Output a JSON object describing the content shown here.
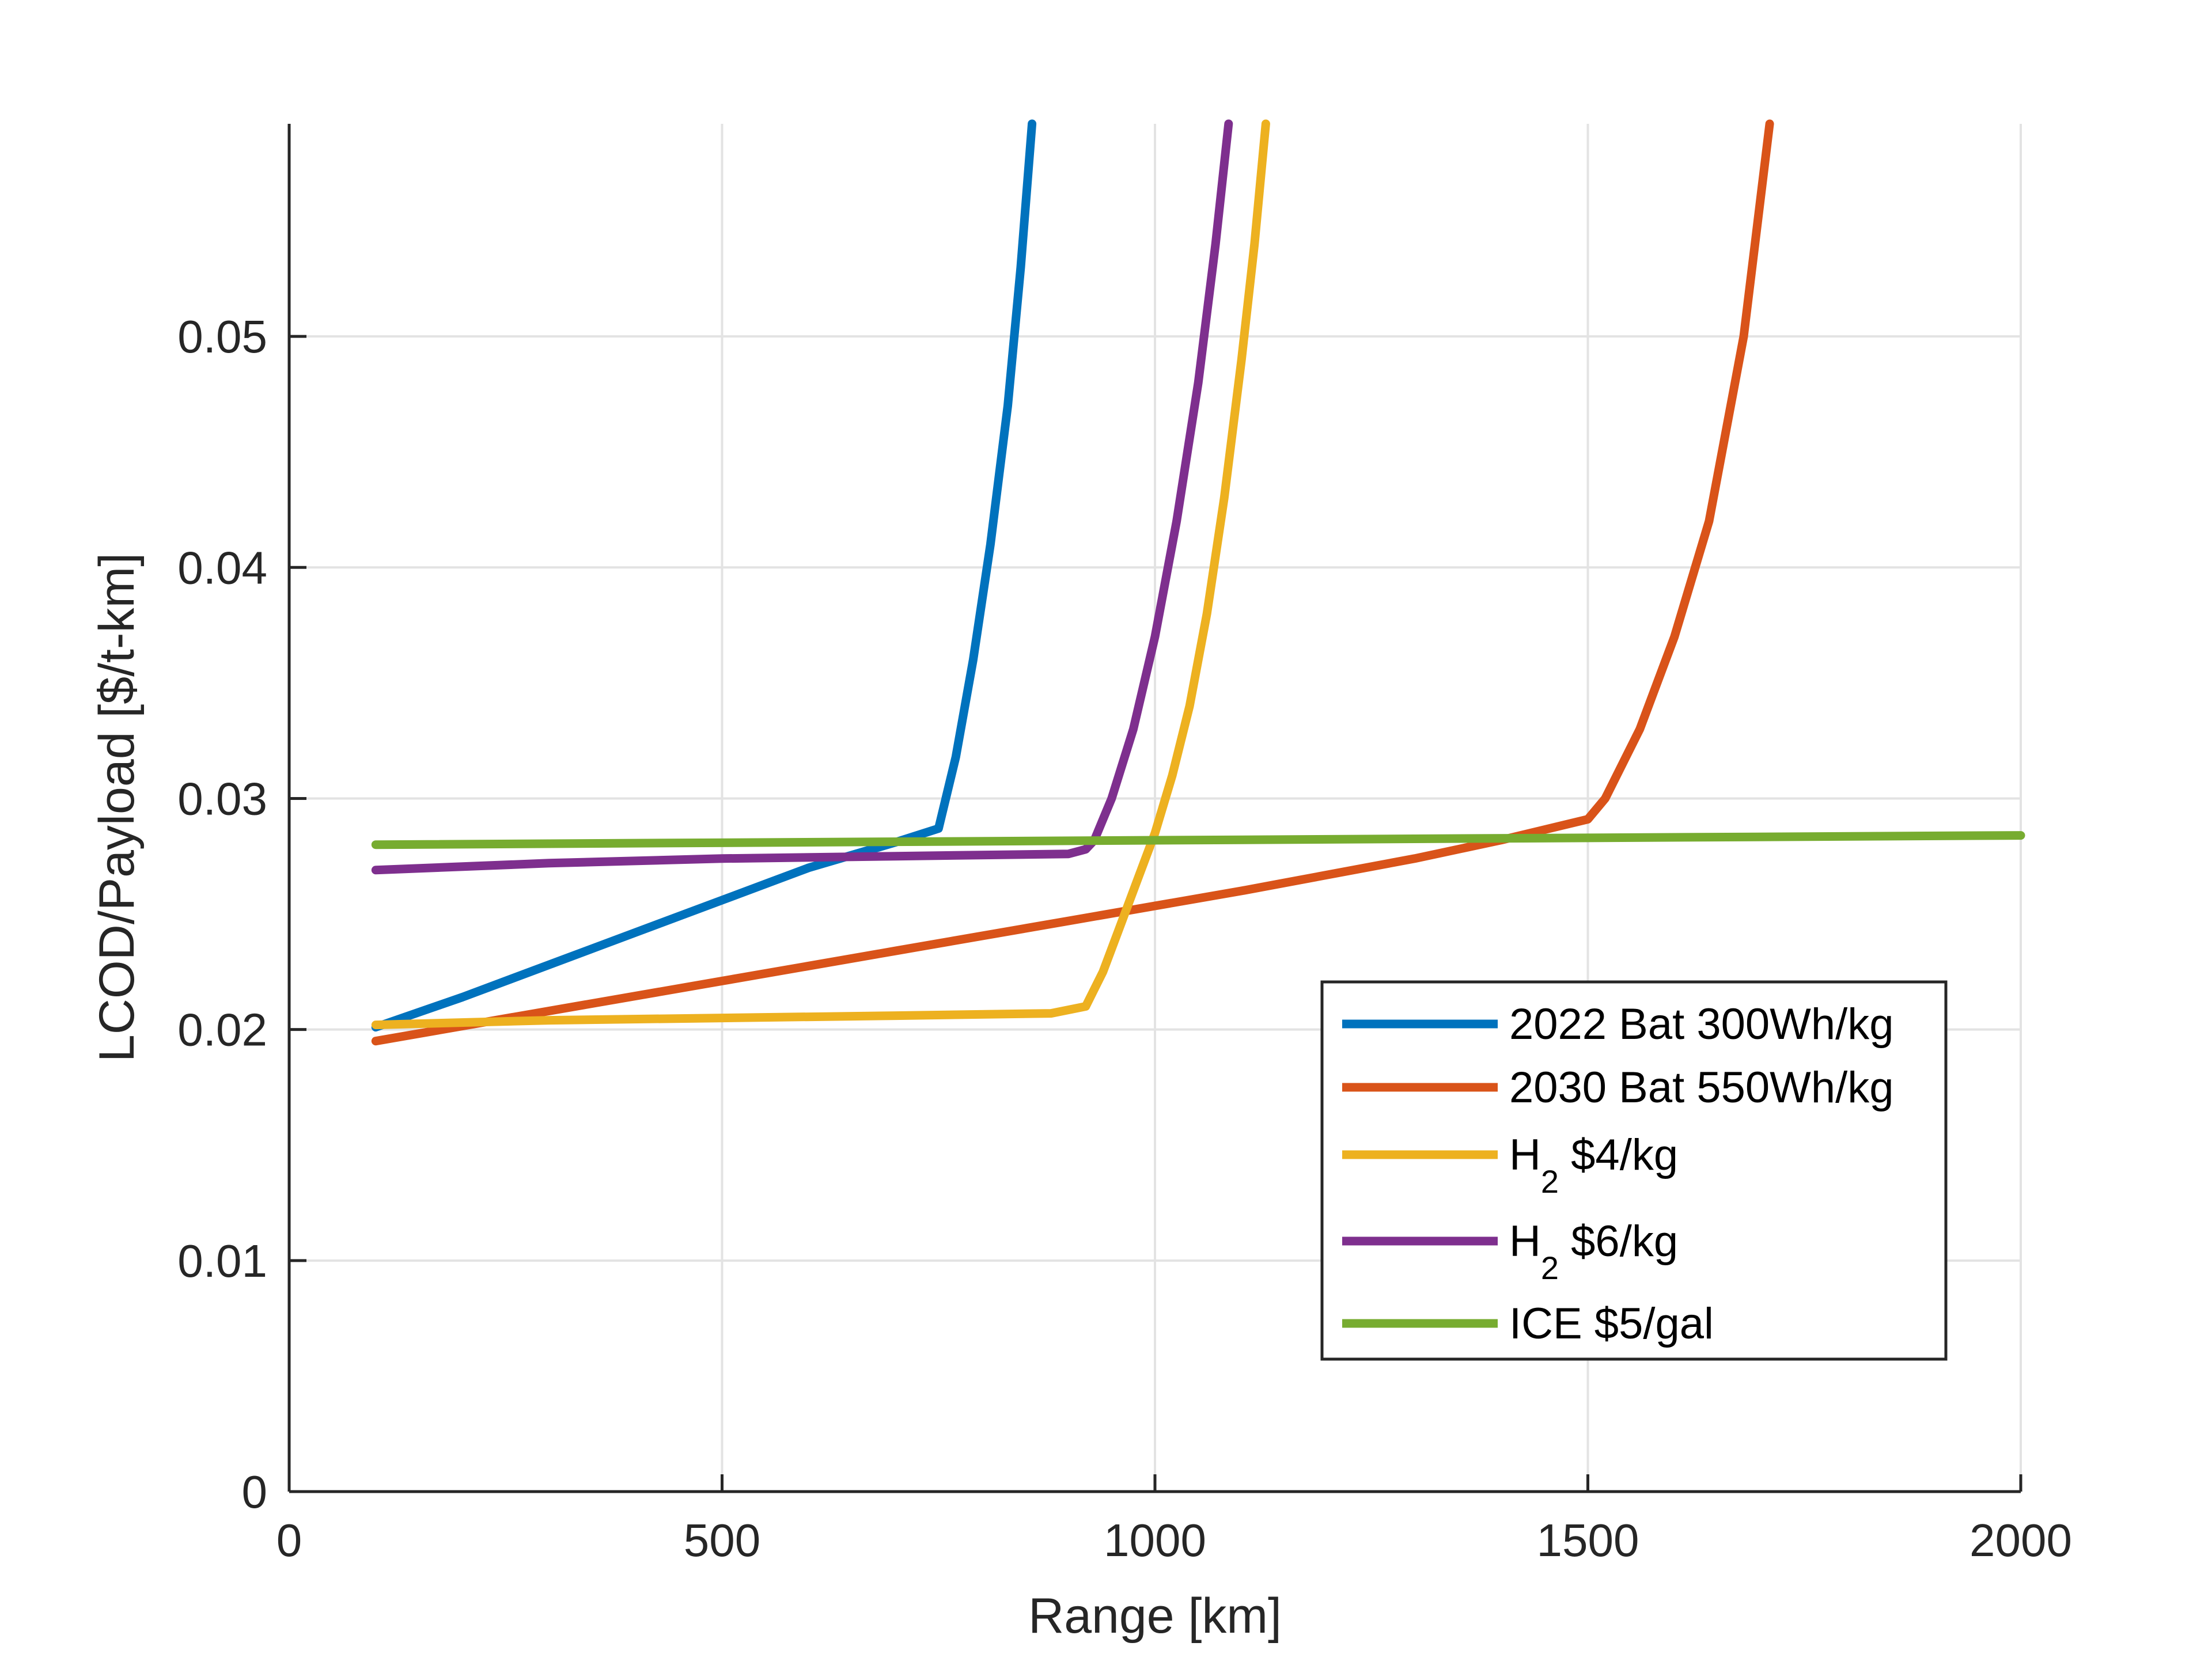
{
  "chart_data": {
    "type": "line",
    "title": "",
    "xlabel": "Range [km]",
    "ylabel": "LCOD/Payload [$/t-km]",
    "xlim": [
      0,
      2000
    ],
    "ylim": [
      0,
      0.0592
    ],
    "xticks": [
      0,
      500,
      1000,
      1500,
      2000
    ],
    "xtick_labels": [
      "0",
      "500",
      "1000",
      "1500",
      "2000"
    ],
    "yticks": [
      0,
      0.01,
      0.02,
      0.03,
      0.04,
      0.05
    ],
    "ytick_labels": [
      "0",
      "0.01",
      "0.02",
      "0.03",
      "0.04",
      "0.05"
    ],
    "grid": true,
    "legend_position": "bottom-right",
    "series": [
      {
        "name": "2022 Bat 300Wh/kg",
        "legend_main": "2022 Bat 300Wh/kg",
        "legend_sub": "",
        "legend_rest": "",
        "color": "#0072BD",
        "x": [
          100,
          200,
          300,
          400,
          500,
          600,
          700,
          750,
          770,
          790,
          810,
          830,
          845,
          858
        ],
        "y": [
          0.0201,
          0.0214,
          0.0228,
          0.0242,
          0.0256,
          0.027,
          0.0281,
          0.0287,
          0.0318,
          0.036,
          0.041,
          0.047,
          0.053,
          0.0592
        ]
      },
      {
        "name": "2030 Bat 550Wh/kg",
        "legend_main": "2030 Bat 550Wh/kg",
        "legend_sub": "",
        "legend_rest": "",
        "color": "#D95319",
        "x": [
          100,
          300,
          500,
          700,
          900,
          1100,
          1300,
          1400,
          1500,
          1520,
          1560,
          1600,
          1640,
          1680,
          1710
        ],
        "y": [
          0.0195,
          0.0208,
          0.0221,
          0.0234,
          0.0247,
          0.026,
          0.0274,
          0.0282,
          0.0291,
          0.03,
          0.033,
          0.037,
          0.042,
          0.05,
          0.0592
        ]
      },
      {
        "name": "H2 $4/kg",
        "legend_main": "H",
        "legend_sub": "2",
        "legend_rest": " $4/kg",
        "color": "#EDB120",
        "x": [
          100,
          300,
          500,
          700,
          880,
          920,
          940,
          960,
          980,
          1000,
          1020,
          1040,
          1060,
          1080,
          1100,
          1115,
          1128
        ],
        "y": [
          0.0202,
          0.0204,
          0.0205,
          0.0206,
          0.0207,
          0.021,
          0.0225,
          0.0245,
          0.0265,
          0.0285,
          0.031,
          0.034,
          0.038,
          0.043,
          0.049,
          0.054,
          0.0592
        ]
      },
      {
        "name": "H2 $6/kg",
        "legend_main": "H",
        "legend_sub": "2",
        "legend_rest": " $6/kg",
        "color": "#7E2F8E",
        "x": [
          100,
          300,
          500,
          700,
          900,
          920,
          930,
          950,
          975,
          1000,
          1025,
          1050,
          1070,
          1085
        ],
        "y": [
          0.0269,
          0.0272,
          0.0274,
          0.0275,
          0.0276,
          0.0278,
          0.0282,
          0.03,
          0.033,
          0.037,
          0.042,
          0.048,
          0.054,
          0.0592
        ]
      },
      {
        "name": "ICE $5/gal",
        "legend_main": "ICE $5/gal",
        "legend_sub": "",
        "legend_rest": "",
        "color": "#77AC30",
        "x": [
          100,
          2000
        ],
        "y": [
          0.028,
          0.0284
        ]
      }
    ]
  }
}
